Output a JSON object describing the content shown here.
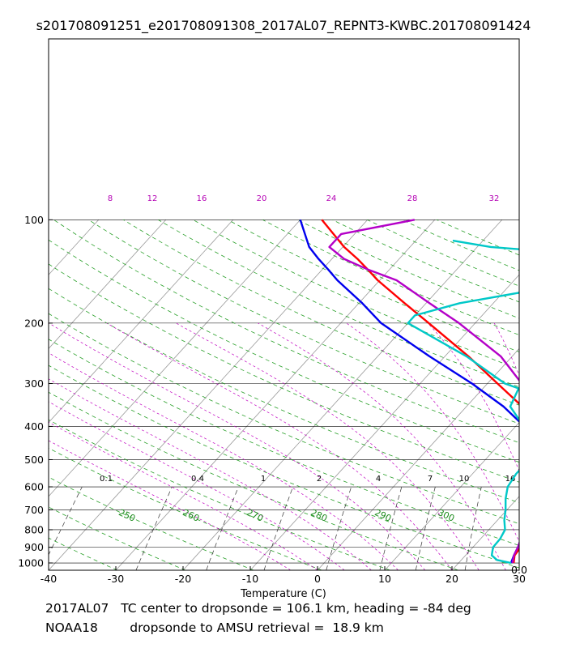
{
  "chart_data": {
    "type": "line",
    "subtype": "skew-T log-P thermodynamic diagram",
    "title": "s201708091251_e201708091308_2017AL07_REPNT3-KWBC.201708091424",
    "xlabel": "Temperature (C)",
    "ylabel": "",
    "xlim": [
      -40,
      30
    ],
    "ylim": [
      1050,
      100
    ],
    "x_ticks": [
      -40,
      -30,
      -20,
      -10,
      0,
      10,
      20,
      30
    ],
    "y_ticks": [
      100,
      200,
      300,
      400,
      500,
      600,
      700,
      800,
      900,
      1000
    ],
    "grid": true,
    "corner_label": "0.0",
    "mixing_ratio_labels": [
      "0.1",
      "0.4",
      "1",
      "2",
      "4",
      "7",
      "10",
      "16"
    ],
    "dry_adiabat_labels": [
      "250",
      "260",
      "270",
      "280",
      "290",
      "300"
    ],
    "moist_adiabat_labels": [
      "8",
      "12",
      "16",
      "20",
      "24",
      "28",
      "32"
    ],
    "series": [
      {
        "name": "blue",
        "color": "#0000ee",
        "points": [
          [
            1000,
            27.8
          ],
          [
            950,
            27.2
          ],
          [
            900,
            26.7
          ],
          [
            850,
            26.0
          ],
          [
            800,
            25.5
          ],
          [
            750,
            24.4
          ],
          [
            700,
            23.3
          ],
          [
            650,
            21.8
          ],
          [
            600,
            20.5
          ],
          [
            550,
            19.2
          ],
          [
            500,
            17.8
          ],
          [
            450,
            16.1
          ],
          [
            430,
            14.9
          ],
          [
            400,
            11.3
          ],
          [
            350,
            5.5
          ],
          [
            300,
            -2.3
          ],
          [
            250,
            -12.3
          ],
          [
            200,
            -24.0
          ],
          [
            175,
            -29.5
          ],
          [
            150,
            -36.3
          ],
          [
            140,
            -39.0
          ],
          [
            130,
            -42.0
          ],
          [
            120,
            -45.0
          ],
          [
            100,
            -50.0
          ]
        ]
      },
      {
        "name": "red",
        "color": "#ff0000",
        "points": [
          [
            1000,
            28.2
          ],
          [
            950,
            27.3
          ],
          [
            900,
            27.1
          ],
          [
            850,
            26.8
          ],
          [
            800,
            26.0
          ],
          [
            750,
            24.6
          ],
          [
            700,
            23.5
          ],
          [
            650,
            22.0
          ],
          [
            600,
            20.5
          ],
          [
            550,
            19.2
          ],
          [
            500,
            17.8
          ],
          [
            450,
            16.0
          ],
          [
            400,
            13.4
          ],
          [
            350,
            8.3
          ],
          [
            300,
            1.5
          ],
          [
            250,
            -6.5
          ],
          [
            200,
            -16.9
          ],
          [
            175,
            -23.2
          ],
          [
            150,
            -30.3
          ],
          [
            140,
            -33.1
          ],
          [
            130,
            -36.2
          ],
          [
            120,
            -39.8
          ],
          [
            100,
            -46.8
          ]
        ]
      },
      {
        "name": "magenta",
        "color": "#b400c8",
        "points": [
          [
            1000,
            28.0
          ],
          [
            950,
            27.2
          ],
          [
            900,
            26.7
          ],
          [
            850,
            26.0
          ],
          [
            800,
            25.4
          ],
          [
            750,
            24.4
          ],
          [
            700,
            23.2
          ],
          [
            650,
            21.8
          ],
          [
            600,
            20.5
          ],
          [
            550,
            19.2
          ],
          [
            500,
            18.0
          ],
          [
            450,
            17.0
          ],
          [
            400,
            15.6
          ],
          [
            350,
            10.8
          ],
          [
            300,
            5.1
          ],
          [
            250,
            -1.7
          ],
          [
            200,
            -12.4
          ],
          [
            175,
            -19.5
          ],
          [
            150,
            -27.5
          ],
          [
            140,
            -33.0
          ],
          [
            130,
            -38.2
          ],
          [
            120,
            -42.0
          ],
          [
            110,
            -42.0
          ],
          [
            100,
            -33.0
          ]
        ]
      },
      {
        "name": "cyan",
        "color": "#00c8c8",
        "points": [
          [
            1000,
            27.8
          ],
          [
            980,
            25.3
          ],
          [
            950,
            23.9
          ],
          [
            900,
            23.0
          ],
          [
            850,
            22.9
          ],
          [
            800,
            22.4
          ],
          [
            750,
            21.0
          ],
          [
            700,
            19.8
          ],
          [
            650,
            18.3
          ],
          [
            600,
            17.0
          ],
          [
            550,
            16.5
          ],
          [
            500,
            16.5
          ],
          [
            450,
            16.7
          ],
          [
            430,
            15.4
          ],
          [
            400,
            11.2
          ],
          [
            350,
            6.5
          ],
          [
            310,
            5.3
          ],
          [
            300,
            2.6
          ],
          [
            250,
            -6.8
          ],
          [
            200,
            -20.0
          ],
          [
            190,
            -20.0
          ],
          [
            175,
            -15.0
          ],
          [
            160,
            -5.5
          ],
          [
            150,
            0.5
          ],
          [
            140,
            5.5
          ],
          [
            130,
            6.0
          ],
          [
            120,
            -18.0
          ],
          [
            115,
            -24.5
          ]
        ]
      }
    ]
  },
  "footer": {
    "line1": "2017AL07   TC center to dropsonde = 106.1 km, heading = -84 deg",
    "line2": "NOAA18        dropsonde to AMSU retrieval =  18.9 km"
  }
}
